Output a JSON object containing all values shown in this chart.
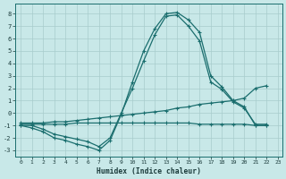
{
  "xlabel": "Humidex (Indice chaleur)",
  "bg_color": "#c8e8e8",
  "grid_color": "#a8cccc",
  "line_color": "#1a6e6e",
  "xlim_min": -0.5,
  "xlim_max": 23.4,
  "ylim_min": -3.5,
  "ylim_max": 8.8,
  "xticks": [
    0,
    1,
    2,
    3,
    4,
    5,
    6,
    7,
    8,
    9,
    10,
    11,
    12,
    13,
    14,
    15,
    16,
    17,
    18,
    19,
    20,
    21,
    22,
    23
  ],
  "yticks": [
    -3,
    -2,
    -1,
    0,
    1,
    2,
    3,
    4,
    5,
    6,
    7,
    8
  ],
  "curve1_x": [
    0,
    1,
    2,
    3,
    4,
    5,
    6,
    7,
    8,
    9,
    10,
    11,
    12,
    13,
    14,
    15,
    16,
    17,
    18,
    19,
    20,
    21,
    22
  ],
  "curve1_y": [
    -1.0,
    -1.2,
    -1.5,
    -2.0,
    -2.2,
    -2.5,
    -2.7,
    -3.0,
    -2.2,
    -0.1,
    2.5,
    5.0,
    6.8,
    8.0,
    8.1,
    7.5,
    6.5,
    3.0,
    2.1,
    1.0,
    0.5,
    -1.0,
    -1.0
  ],
  "curve2_x": [
    0,
    1,
    2,
    3,
    4,
    5,
    6,
    7,
    8,
    9,
    10,
    11,
    12,
    13,
    14,
    15,
    16,
    17,
    18,
    19,
    20,
    21,
    22
  ],
  "curve2_y": [
    -1.0,
    -1.0,
    -1.3,
    -1.7,
    -1.9,
    -2.1,
    -2.3,
    -2.7,
    -2.0,
    0.0,
    2.0,
    4.2,
    6.3,
    7.8,
    7.9,
    7.0,
    5.8,
    2.5,
    1.9,
    0.9,
    0.4,
    -0.9,
    -0.9
  ],
  "curve3_x": [
    0,
    1,
    2,
    3,
    4,
    5,
    6,
    7,
    8,
    9,
    10,
    11,
    12,
    13,
    14,
    15,
    16,
    17,
    18,
    19,
    20,
    21,
    22
  ],
  "curve3_y": [
    -0.8,
    -0.8,
    -0.8,
    -0.7,
    -0.7,
    -0.6,
    -0.5,
    -0.4,
    -0.3,
    -0.2,
    -0.1,
    0.0,
    0.1,
    0.2,
    0.4,
    0.5,
    0.7,
    0.8,
    0.9,
    1.0,
    1.2,
    2.0,
    2.2
  ],
  "curve4_x": [
    0,
    1,
    2,
    3,
    4,
    5,
    6,
    7,
    8,
    9,
    10,
    11,
    12,
    13,
    14,
    15,
    16,
    17,
    18,
    19,
    20,
    21,
    22
  ],
  "curve4_y": [
    -0.9,
    -0.9,
    -0.9,
    -0.9,
    -0.9,
    -0.8,
    -0.8,
    -0.8,
    -0.8,
    -0.8,
    -0.8,
    -0.8,
    -0.8,
    -0.8,
    -0.8,
    -0.8,
    -0.9,
    -0.9,
    -0.9,
    -0.9,
    -0.9,
    -1.0,
    -1.0
  ]
}
